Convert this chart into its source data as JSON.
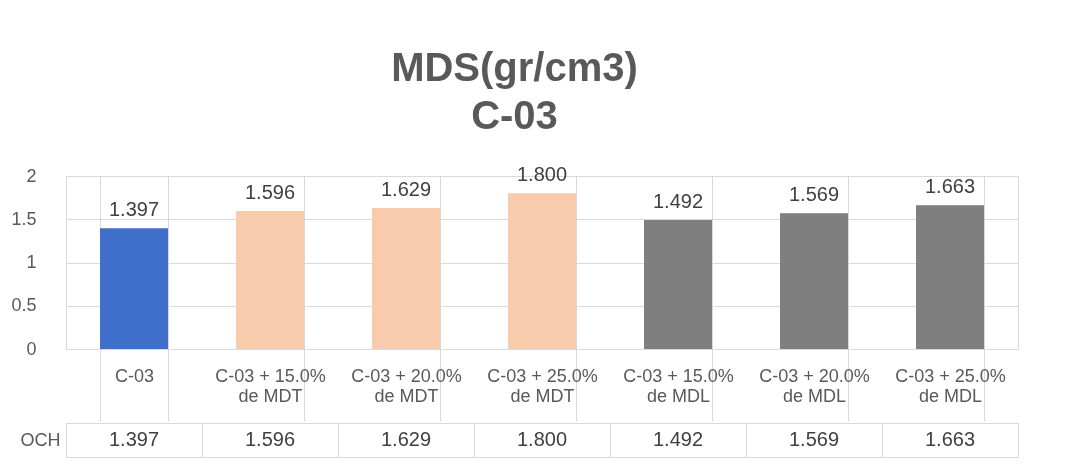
{
  "chart_data": {
    "type": "bar",
    "title": "MDS(gr/cm3)",
    "subtitle": "C-03",
    "categories": [
      "C-03",
      "C-03 + 15.0% de MDT",
      "C-03 + 20.0% de MDT",
      "C-03 + 25.0% de MDT",
      "C-03 + 15.0% de MDL",
      "C-03 + 20.0% de MDL",
      "C-03 + 25.0% de MDL"
    ],
    "series": [
      {
        "name": "OCH",
        "values": [
          1.397,
          1.596,
          1.629,
          1.8,
          1.492,
          1.569,
          1.663
        ],
        "colors": [
          "#3f6fca",
          "#f8cbad",
          "#f8cbad",
          "#f8cbad",
          "#7f7f7f",
          "#7f7f7f",
          "#7f7f7f"
        ],
        "value_labels": [
          "1.397",
          "1.596",
          "1.629",
          "1.800",
          "1.492",
          "1.569",
          "1.663"
        ]
      }
    ],
    "ylim": [
      0,
      2
    ],
    "yticks": [
      0,
      0.5,
      1,
      1.5,
      2
    ],
    "grid": true,
    "legend": "bottom"
  }
}
